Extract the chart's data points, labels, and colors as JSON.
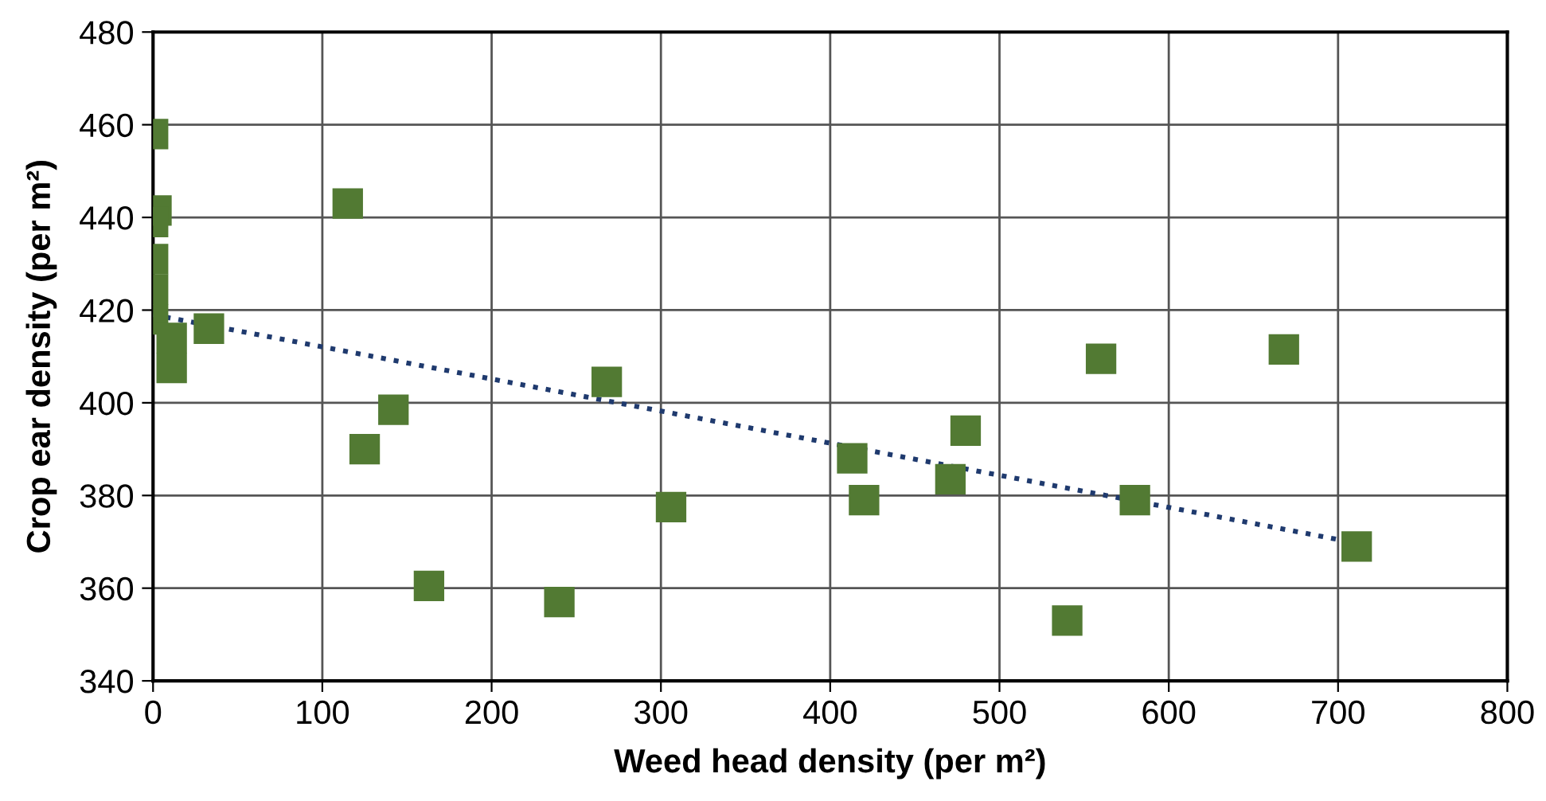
{
  "chart_data": {
    "type": "scatter",
    "xlabel": "Weed head density (per m²)",
    "ylabel": "Crop ear density (per m²)",
    "xlim": [
      0,
      800
    ],
    "ylim": [
      340,
      480
    ],
    "xticks": [
      0,
      100,
      200,
      300,
      400,
      500,
      600,
      700,
      800
    ],
    "yticks": [
      340,
      360,
      380,
      400,
      420,
      440,
      460,
      480
    ],
    "grid": true,
    "legend": false,
    "series": [
      {
        "color": "#527a33",
        "marker": "square",
        "x": [
          0,
          2,
          0,
          0,
          0,
          0,
          11,
          11,
          33,
          115,
          142,
          125,
          163,
          240,
          268,
          306,
          413,
          420,
          471,
          480,
          540,
          560,
          580,
          668,
          711
        ],
        "values": [
          458,
          441.5,
          439,
          431,
          424.5,
          418,
          414,
          407.5,
          416,
          443,
          398.5,
          390,
          360.5,
          357,
          404.5,
          377.5,
          388,
          379,
          383.5,
          394,
          353,
          409.5,
          379,
          411.5,
          369
        ]
      },
      {
        "type": "line",
        "color": "#1f3a6e",
        "line_style": "dotted",
        "marker": "none",
        "x": [
          0,
          700
        ],
        "values": [
          419,
          370.5
        ]
      }
    ]
  }
}
